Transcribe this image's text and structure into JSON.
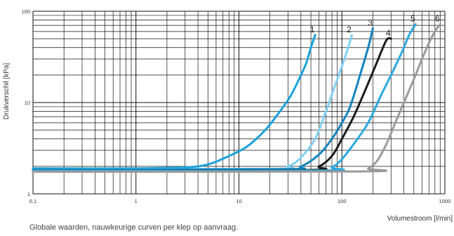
{
  "chart_data": {
    "type": "line",
    "xscale": "log",
    "yscale": "log",
    "xlim": [
      0.1,
      1000
    ],
    "ylim": [
      1,
      100
    ],
    "xlabel": "Volumestroom [l/min]",
    "ylabel": "Drukverschil [kPa]",
    "x_tick_labels": [
      "0,1",
      "1",
      "10",
      "100",
      "1000"
    ],
    "y_tick_labels": [
      "1",
      "10",
      "100"
    ],
    "grid": true,
    "footnote": "Globale waarden, nauwkeurige curven per klep op aanvraag.",
    "series": [
      {
        "name": "1",
        "color": "#1aa3dc",
        "points": [
          [
            0.1,
            1.9
          ],
          [
            1,
            1.9
          ],
          [
            3,
            1.95
          ],
          [
            5,
            2.1
          ],
          [
            8,
            2.6
          ],
          [
            12,
            3.3
          ],
          [
            18,
            5
          ],
          [
            25,
            8
          ],
          [
            32,
            12
          ],
          [
            40,
            20
          ],
          [
            45,
            27
          ],
          [
            50,
            40
          ],
          [
            55,
            55
          ]
        ]
      },
      {
        "name": "2",
        "color": "#7fd0f2",
        "points": [
          [
            0.1,
            1.85
          ],
          [
            20,
            1.88
          ],
          [
            30,
            2.0
          ],
          [
            40,
            2.5
          ],
          [
            55,
            4
          ],
          [
            70,
            8
          ],
          [
            85,
            15
          ],
          [
            100,
            25
          ],
          [
            115,
            40
          ],
          [
            125,
            55
          ]
        ]
      },
      {
        "name": "3",
        "color": "#1483c1",
        "points": [
          [
            0.1,
            1.85
          ],
          [
            25,
            1.86
          ],
          [
            40,
            2.0
          ],
          [
            60,
            2.7
          ],
          [
            80,
            4
          ],
          [
            100,
            6
          ],
          [
            120,
            9
          ],
          [
            150,
            20
          ],
          [
            180,
            40
          ],
          [
            200,
            65
          ]
        ]
      },
      {
        "name": "4",
        "color": "#1a1a1a",
        "points": [
          [
            0.1,
            1.8
          ],
          [
            40,
            1.82
          ],
          [
            60,
            2.0
          ],
          [
            80,
            2.6
          ],
          [
            100,
            4
          ],
          [
            130,
            7
          ],
          [
            170,
            14
          ],
          [
            220,
            28
          ],
          [
            270,
            48
          ],
          [
            300,
            50
          ]
        ]
      },
      {
        "name": "5",
        "color": "#2aa8df",
        "points": [
          [
            0.1,
            1.8
          ],
          [
            60,
            1.8
          ],
          [
            80,
            1.95
          ],
          [
            100,
            2.4
          ],
          [
            130,
            3.5
          ],
          [
            180,
            6
          ],
          [
            240,
            12
          ],
          [
            300,
            20
          ],
          [
            380,
            35
          ],
          [
            450,
            55
          ],
          [
            520,
            72
          ]
        ]
      },
      {
        "name": "6",
        "color": "#9a9a9a",
        "points": [
          [
            0.1,
            1.75
          ],
          [
            150,
            1.76
          ],
          [
            180,
            1.9
          ],
          [
            220,
            2.3
          ],
          [
            270,
            3.5
          ],
          [
            330,
            6
          ],
          [
            400,
            10
          ],
          [
            500,
            18
          ],
          [
            600,
            30
          ],
          [
            700,
            45
          ],
          [
            800,
            60
          ],
          [
            900,
            72
          ]
        ]
      }
    ]
  }
}
